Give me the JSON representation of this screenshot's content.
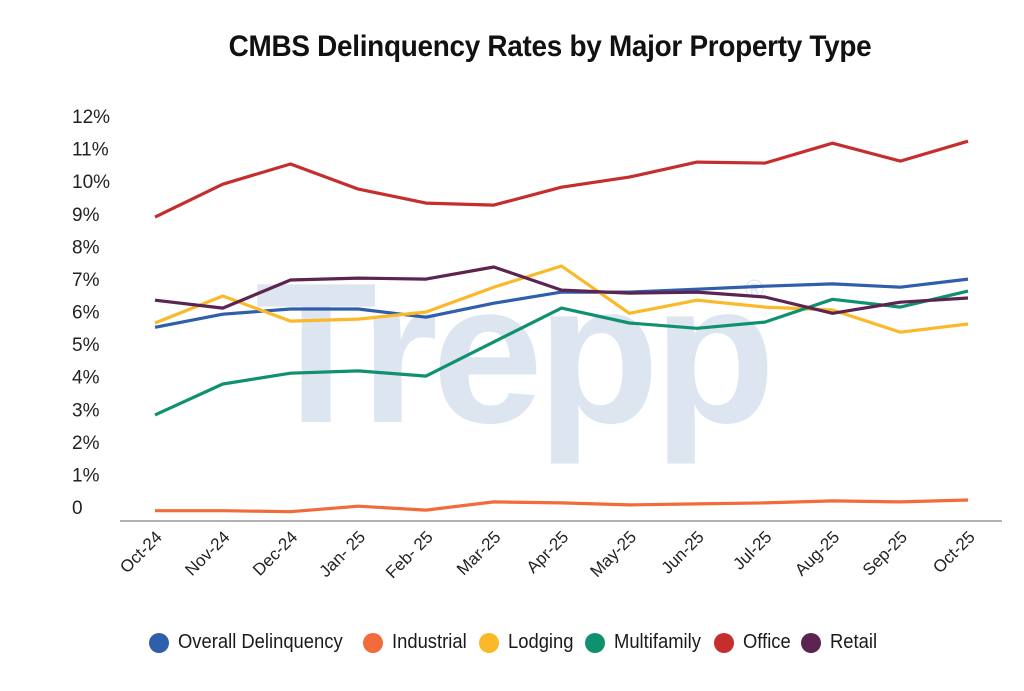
{
  "chart_data": {
    "type": "line",
    "title": "CMBS Delinquency Rates by Major Property Type",
    "xlabel": "",
    "ylabel": "",
    "categories": [
      "Oct-24",
      "Nov-24",
      "Dec-24",
      "Jan- 25",
      "Feb- 25",
      "Mar-25",
      "Apr-25",
      "May-25",
      "Jun-25",
      "Jul-25",
      "Aug-25",
      "Sep-25",
      "Oct-25"
    ],
    "ylim": [
      0,
      12
    ],
    "yticks": [
      0,
      1,
      2,
      3,
      4,
      5,
      6,
      7,
      8,
      9,
      10,
      11,
      12
    ],
    "ytick_labels": [
      "0",
      "1%",
      "2%",
      "3%",
      "4%",
      "5%",
      "6%",
      "7%",
      "8%",
      "9%",
      "10%",
      "11%",
      "12%"
    ],
    "grid": false,
    "legend_position": "bottom",
    "watermark": "Trepp",
    "watermark_mark": "®",
    "series": [
      {
        "name": "Overall Delinquency",
        "color": "#2f5eaa",
        "values": [
          5.7,
          6.1,
          6.26,
          6.26,
          6.01,
          6.44,
          6.78,
          6.78,
          6.87,
          6.96,
          7.03,
          6.93,
          7.18
        ]
      },
      {
        "name": "Industrial",
        "color": "#f26b3a",
        "values": [
          0.07,
          0.07,
          0.04,
          0.21,
          0.09,
          0.34,
          0.31,
          0.25,
          0.28,
          0.31,
          0.37,
          0.34,
          0.4
        ]
      },
      {
        "name": "Lodging",
        "color": "#fbb829",
        "values": [
          5.83,
          6.66,
          5.89,
          5.95,
          6.17,
          6.93,
          7.58,
          6.13,
          6.53,
          6.32,
          6.23,
          5.55,
          5.8
        ]
      },
      {
        "name": "Multifamily",
        "color": "#0f9170",
        "values": [
          3.01,
          3.96,
          4.29,
          4.36,
          4.2,
          5.25,
          6.29,
          5.83,
          5.67,
          5.86,
          6.56,
          6.32,
          6.81
        ]
      },
      {
        "name": "Office",
        "color": "#c62d2d",
        "values": [
          9.08,
          10.09,
          10.71,
          9.94,
          9.51,
          9.45,
          10.0,
          10.31,
          10.77,
          10.74,
          11.35,
          10.8,
          11.41
        ]
      },
      {
        "name": "Retail",
        "color": "#5c2450",
        "values": [
          6.53,
          6.29,
          7.15,
          7.21,
          7.18,
          7.55,
          6.84,
          6.75,
          6.78,
          6.63,
          6.13,
          6.47,
          6.6
        ]
      }
    ]
  }
}
